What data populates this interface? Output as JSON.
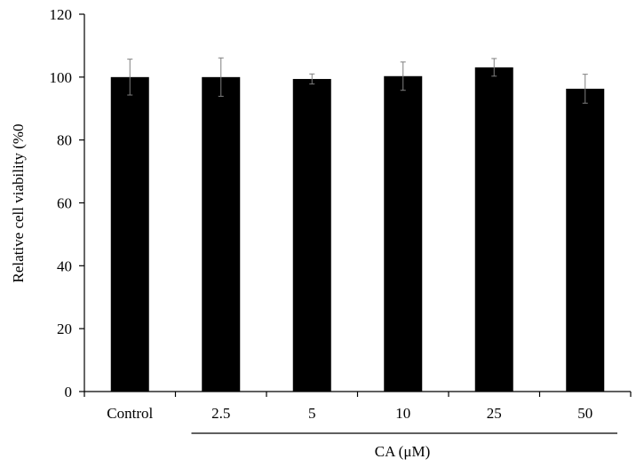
{
  "chart_data": {
    "type": "bar",
    "title": "",
    "categories": [
      "Control",
      "2.5",
      "5",
      "10",
      "25",
      "50"
    ],
    "values": [
      100.0,
      100.0,
      99.4,
      100.3,
      103.1,
      96.3
    ],
    "errors": [
      5.7,
      6.1,
      1.6,
      4.5,
      2.8,
      4.6
    ],
    "ylabel": "Relative cell viability (%0",
    "xlabel": "",
    "group_label": "CA (μM)",
    "group_span": [
      "2.5",
      "50"
    ],
    "ylim": [
      0,
      120
    ],
    "yticks": [
      0,
      20,
      40,
      60,
      80,
      100,
      120
    ],
    "grid": false,
    "legend": "none",
    "bar_color": "#000000",
    "error_bar_color": "#7f7f7f"
  }
}
